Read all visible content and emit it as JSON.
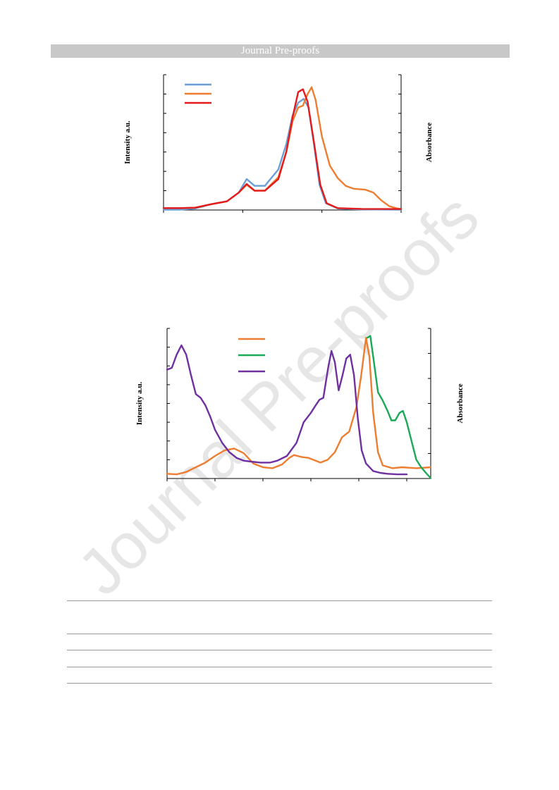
{
  "header": {
    "banner_text": "Journal Pre-proofs"
  },
  "watermark": {
    "text": "Journal Pre-proofs"
  },
  "chart_data": [
    {
      "type": "line",
      "ylabel_left": "Intensity a.u.",
      "ylabel_right": "Absorbance",
      "xlim": [
        0,
        30
      ],
      "ylim": [
        0,
        7
      ],
      "grid": false,
      "legend": "top-left",
      "legend_entries": 3,
      "series": [
        {
          "color": "#6a9ed4",
          "points": [
            [
              0,
              0.02
            ],
            [
              2,
              0.02
            ],
            [
              4,
              0.08
            ],
            [
              6,
              0.3
            ],
            [
              8,
              0.45
            ],
            [
              9.5,
              0.9
            ],
            [
              10.5,
              1.6
            ],
            [
              11.5,
              1.25
            ],
            [
              12.8,
              1.25
            ],
            [
              14.5,
              2.1
            ],
            [
              15.5,
              3.4
            ],
            [
              16.3,
              4.9
            ],
            [
              17,
              5.55
            ],
            [
              17.7,
              5.75
            ],
            [
              18.3,
              5.3
            ],
            [
              19,
              3.4
            ],
            [
              19.7,
              1.3
            ],
            [
              20.5,
              0.35
            ],
            [
              22,
              0.08
            ],
            [
              25,
              0.03
            ],
            [
              30,
              0.02
            ]
          ]
        },
        {
          "color": "#ed7d31",
          "points": [
            [
              0,
              0.1
            ],
            [
              2,
              0.1
            ],
            [
              4,
              0.12
            ],
            [
              6,
              0.3
            ],
            [
              8,
              0.45
            ],
            [
              9.5,
              0.9
            ],
            [
              10.5,
              1.3
            ],
            [
              11.5,
              1.0
            ],
            [
              12.8,
              1.0
            ],
            [
              14.5,
              1.7
            ],
            [
              15.5,
              3.0
            ],
            [
              16.3,
              4.6
            ],
            [
              17,
              5.3
            ],
            [
              17.6,
              5.4
            ],
            [
              18.2,
              6.0
            ],
            [
              18.7,
              6.35
            ],
            [
              19.2,
              5.7
            ],
            [
              20,
              3.8
            ],
            [
              21,
              2.3
            ],
            [
              22,
              1.65
            ],
            [
              23,
              1.25
            ],
            [
              24,
              1.1
            ],
            [
              25.5,
              1.05
            ],
            [
              26.5,
              0.9
            ],
            [
              27.5,
              0.5
            ],
            [
              28.5,
              0.2
            ],
            [
              29.5,
              0.08
            ],
            [
              30,
              0.06
            ]
          ]
        },
        {
          "color": "#e41a1c",
          "points": [
            [
              0,
              0.1
            ],
            [
              2,
              0.1
            ],
            [
              4,
              0.12
            ],
            [
              6,
              0.3
            ],
            [
              8,
              0.45
            ],
            [
              9.5,
              0.9
            ],
            [
              10.5,
              1.35
            ],
            [
              11.5,
              1.0
            ],
            [
              12.8,
              1.0
            ],
            [
              14.5,
              1.6
            ],
            [
              15.5,
              3.0
            ],
            [
              16.3,
              4.8
            ],
            [
              17,
              6.1
            ],
            [
              17.6,
              6.25
            ],
            [
              18.2,
              5.6
            ],
            [
              19,
              3.5
            ],
            [
              19.8,
              1.3
            ],
            [
              20.6,
              0.35
            ],
            [
              22,
              0.1
            ],
            [
              25,
              0.06
            ],
            [
              30,
              0.05
            ]
          ]
        }
      ]
    },
    {
      "type": "line",
      "ylabel_left": "Intensity a.u.",
      "ylabel_right": "Absorbance",
      "xlim": [
        0,
        550
      ],
      "ylim": [
        0,
        8
      ],
      "grid": false,
      "legend": "top-center",
      "legend_entries": 3,
      "series": [
        {
          "color": "#ed7d31",
          "points": [
            [
              0,
              0.25
            ],
            [
              20,
              0.22
            ],
            [
              40,
              0.35
            ],
            [
              60,
              0.6
            ],
            [
              80,
              0.85
            ],
            [
              100,
              1.2
            ],
            [
              120,
              1.5
            ],
            [
              140,
              1.6
            ],
            [
              160,
              1.35
            ],
            [
              180,
              0.8
            ],
            [
              200,
              0.6
            ],
            [
              220,
              0.55
            ],
            [
              240,
              0.75
            ],
            [
              255,
              1.1
            ],
            [
              265,
              1.25
            ],
            [
              280,
              1.15
            ],
            [
              295,
              1.1
            ],
            [
              310,
              0.95
            ],
            [
              320,
              0.85
            ],
            [
              335,
              1.0
            ],
            [
              350,
              1.4
            ],
            [
              365,
              2.2
            ],
            [
              380,
              2.5
            ],
            [
              395,
              3.8
            ],
            [
              405,
              5.5
            ],
            [
              415,
              7.5
            ],
            [
              422,
              6.5
            ],
            [
              430,
              3.5
            ],
            [
              440,
              1.4
            ],
            [
              450,
              0.7
            ],
            [
              470,
              0.55
            ],
            [
              490,
              0.6
            ],
            [
              520,
              0.55
            ],
            [
              550,
              0.6
            ]
          ]
        },
        {
          "color": "#1aaa55",
          "points": [
            [
              418,
              7.5
            ],
            [
              424,
              7.6
            ],
            [
              430,
              6.5
            ],
            [
              440,
              4.6
            ],
            [
              450,
              4.15
            ],
            [
              460,
              3.6
            ],
            [
              468,
              3.1
            ],
            [
              476,
              3.1
            ],
            [
              485,
              3.5
            ],
            [
              492,
              3.6
            ],
            [
              500,
              3.0
            ],
            [
              510,
              2.0
            ],
            [
              520,
              1.0
            ],
            [
              530,
              0.6
            ],
            [
              540,
              0.3
            ],
            [
              550,
              0.02
            ]
          ]
        },
        {
          "color": "#7030a0",
          "points": [
            [
              0,
              5.8
            ],
            [
              10,
              5.9
            ],
            [
              20,
              6.6
            ],
            [
              30,
              7.1
            ],
            [
              40,
              6.6
            ],
            [
              50,
              5.5
            ],
            [
              60,
              4.5
            ],
            [
              70,
              4.3
            ],
            [
              80,
              3.9
            ],
            [
              90,
              3.3
            ],
            [
              100,
              2.6
            ],
            [
              115,
              1.9
            ],
            [
              130,
              1.4
            ],
            [
              145,
              1.1
            ],
            [
              160,
              0.95
            ],
            [
              175,
              0.9
            ],
            [
              195,
              0.85
            ],
            [
              215,
              0.85
            ],
            [
              230,
              0.95
            ],
            [
              250,
              1.2
            ],
            [
              270,
              1.9
            ],
            [
              285,
              3.0
            ],
            [
              300,
              3.5
            ],
            [
              310,
              3.9
            ],
            [
              318,
              4.2
            ],
            [
              326,
              4.3
            ],
            [
              336,
              5.9
            ],
            [
              343,
              6.8
            ],
            [
              350,
              6.2
            ],
            [
              358,
              4.7
            ],
            [
              366,
              5.5
            ],
            [
              374,
              6.4
            ],
            [
              382,
              6.6
            ],
            [
              390,
              5.5
            ],
            [
              398,
              3.2
            ],
            [
              406,
              1.5
            ],
            [
              415,
              0.8
            ],
            [
              430,
              0.4
            ],
            [
              445,
              0.3
            ],
            [
              460,
              0.25
            ],
            [
              480,
              0.22
            ],
            [
              500,
              0.22
            ]
          ]
        }
      ]
    }
  ]
}
